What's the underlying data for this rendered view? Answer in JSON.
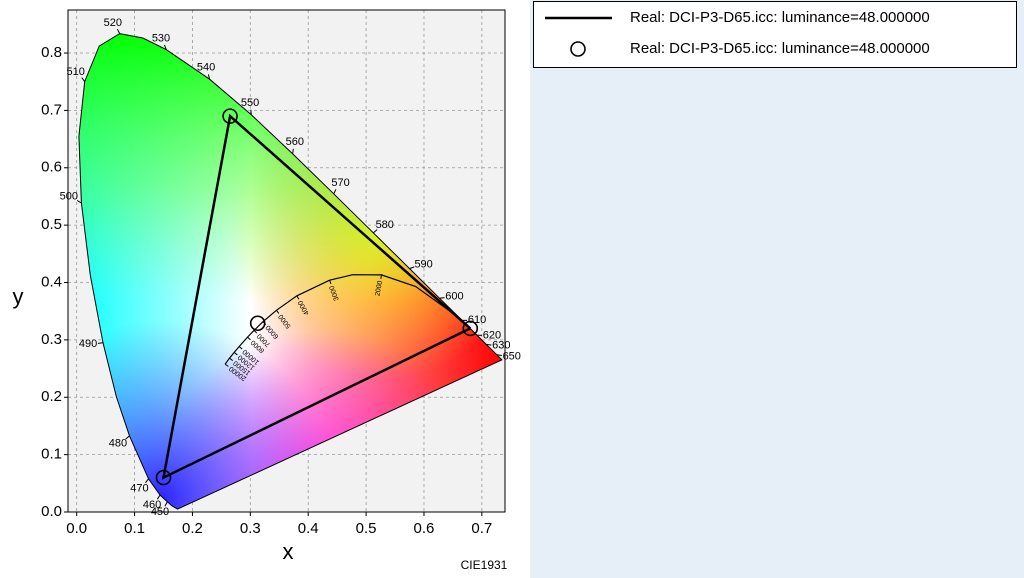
{
  "chart_data": {
    "type": "chromaticity",
    "x_label": "x",
    "y_label": "y",
    "note": "CIE1931",
    "xlim": [
      -0.015,
      0.74
    ],
    "ylim": [
      0,
      0.875
    ],
    "xticks": [
      {
        "value": 0,
        "label": "0.0"
      },
      {
        "value": 0.1,
        "label": "0.1"
      },
      {
        "value": 0.2,
        "label": "0.2"
      },
      {
        "value": 0.3,
        "label": "0.3"
      },
      {
        "value": 0.4,
        "label": "0.4"
      },
      {
        "value": 0.5,
        "label": "0.5"
      },
      {
        "value": 0.6,
        "label": "0.6"
      },
      {
        "value": 0.7,
        "label": "0.7"
      }
    ],
    "yticks": [
      {
        "value": 0,
        "label": "0.0"
      },
      {
        "value": 0.1,
        "label": "0.1"
      },
      {
        "value": 0.2,
        "label": "0.2"
      },
      {
        "value": 0.3,
        "label": "0.3"
      },
      {
        "value": 0.4,
        "label": "0.4"
      },
      {
        "value": 0.5,
        "label": "0.5"
      },
      {
        "value": 0.6,
        "label": "0.6"
      },
      {
        "value": 0.7,
        "label": "0.7"
      },
      {
        "value": 0.8,
        "label": "0.8"
      }
    ],
    "grid": true,
    "legend": "outside-right",
    "spectral_locus": {
      "x": [
        0.1741,
        0.1644,
        0.1566,
        0.144,
        0.1241,
        0.0913,
        0.0687,
        0.0454,
        0.0235,
        0.0082,
        0.0039,
        0.0139,
        0.0389,
        0.0743,
        0.1142,
        0.1547,
        0.2296,
        0.3016,
        0.3731,
        0.4441,
        0.5125,
        0.5752,
        0.627,
        0.6658,
        0.6915,
        0.7079,
        0.726,
        0.7347
      ],
      "y": [
        0.005,
        0.0109,
        0.0177,
        0.0297,
        0.0578,
        0.1327,
        0.2007,
        0.295,
        0.4127,
        0.5384,
        0.6548,
        0.7502,
        0.812,
        0.8338,
        0.8262,
        0.8059,
        0.7543,
        0.6923,
        0.6245,
        0.5547,
        0.4866,
        0.4242,
        0.3725,
        0.334,
        0.3083,
        0.292,
        0.274,
        0.2653
      ],
      "labels": [
        null,
        null,
        450,
        460,
        470,
        480,
        null,
        490,
        null,
        500,
        null,
        510,
        null,
        520,
        null,
        530,
        540,
        550,
        560,
        570,
        580,
        590,
        600,
        610,
        620,
        630,
        650,
        null
      ]
    },
    "planckian_locus": {
      "x": [
        0.6528,
        0.5857,
        0.5267,
        0.477,
        0.4369,
        0.3805,
        0.3451,
        0.3221,
        0.3064,
        0.2952,
        0.2807,
        0.2722,
        0.2641,
        0.2565
      ],
      "y": [
        0.3444,
        0.3931,
        0.4133,
        0.4137,
        0.4041,
        0.3768,
        0.3516,
        0.3318,
        0.3166,
        0.3048,
        0.2884,
        0.2782,
        0.2681,
        0.2577
      ],
      "labels": [
        null,
        null,
        2000,
        null,
        3000,
        4000,
        5000,
        6000,
        7000,
        8000,
        10000,
        12000,
        15000,
        20000
      ]
    },
    "series": [
      {
        "name": "Real: DCI-P3-D65.icc: luminance=48.000000",
        "type": "line",
        "color": "#000000",
        "x": [
          0.68,
          0.265,
          0.15,
          0.68
        ],
        "y": [
          0.32,
          0.69,
          0.06,
          0.32
        ]
      },
      {
        "name": "Real: DCI-P3-D65.icc: luminance=48.000000",
        "type": "marker",
        "color": "#000000",
        "x": [
          0.68,
          0.265,
          0.15,
          0.3127
        ],
        "y": [
          0.32,
          0.69,
          0.06,
          0.329
        ]
      }
    ]
  }
}
